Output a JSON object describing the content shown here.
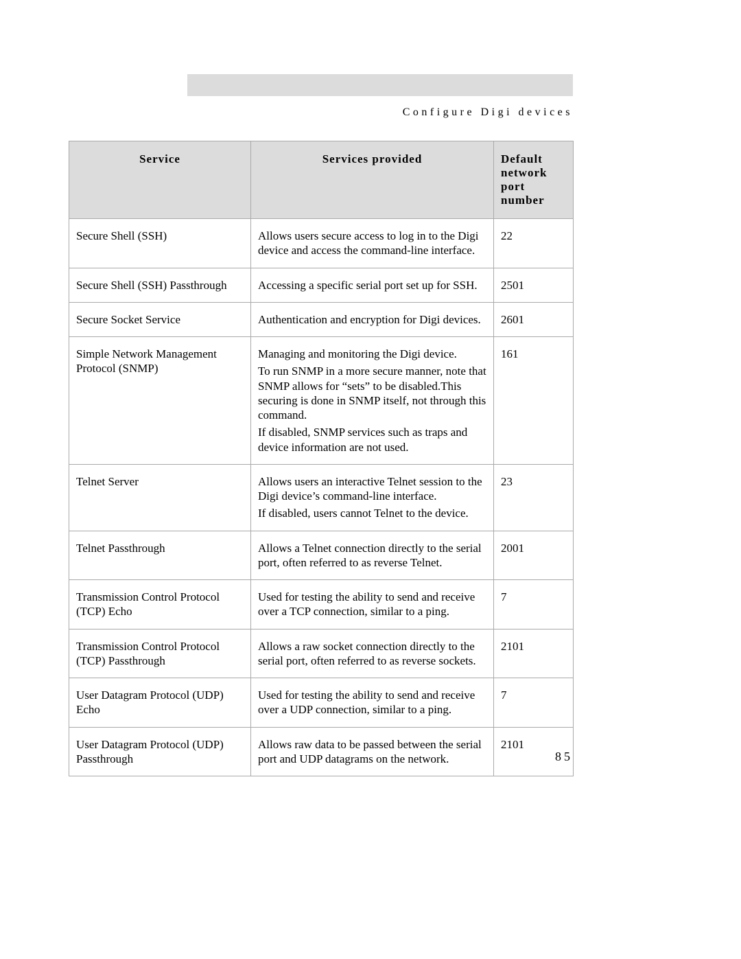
{
  "header": {
    "section_title": "Configure Digi devices"
  },
  "table": {
    "columns": [
      "Service",
      "Services provided",
      "Default network port number"
    ],
    "rows": [
      {
        "service": "Secure Shell (SSH)",
        "provided": [
          "Allows users secure access to log in to the Digi device and access the command-line interface."
        ],
        "port": "22"
      },
      {
        "service": "Secure Shell (SSH) Passthrough",
        "provided": [
          "Accessing a specific serial port set up for SSH."
        ],
        "port": "2501"
      },
      {
        "service": "Secure Socket Service",
        "provided": [
          "Authentication and encryption for Digi devices."
        ],
        "port": "2601"
      },
      {
        "service": "Simple Network Management Protocol (SNMP)",
        "provided": [
          "Managing and monitoring the Digi device.",
          "To run SNMP in a more secure manner, note that SNMP allows for “sets” to be disabled.This securing is done in SNMP itself, not through this command.",
          "If disabled, SNMP services such as traps and device information are not used."
        ],
        "port": "161"
      },
      {
        "service": "Telnet Server",
        "provided": [
          "Allows users an interactive Telnet session to the Digi device’s command-line interface.",
          "If disabled, users cannot Telnet to the device."
        ],
        "port": "23"
      },
      {
        "service": "Telnet Passthrough",
        "provided": [
          "Allows a Telnet connection directly to the serial port, often referred to as reverse Telnet."
        ],
        "port": "2001"
      },
      {
        "service": "Transmission Control Protocol (TCP) Echo",
        "provided": [
          "Used for testing the ability to send and receive over a TCP connection, similar to a ping."
        ],
        "port": "7"
      },
      {
        "service": "Transmission Control Protocol (TCP) Passthrough",
        "provided": [
          "Allows a raw socket connection directly to the serial port, often referred to as reverse sockets."
        ],
        "port": "2101"
      },
      {
        "service": "User Datagram Protocol (UDP) Echo",
        "provided": [
          "Used for testing the ability to send and receive over a UDP connection, similar to a ping."
        ],
        "port": "7"
      },
      {
        "service": "User Datagram Protocol (UDP) Passthrough",
        "provided": [
          "Allows raw data to be passed between the serial port and UDP datagrams on the network."
        ],
        "port": "2101"
      }
    ]
  },
  "page_number": "85"
}
